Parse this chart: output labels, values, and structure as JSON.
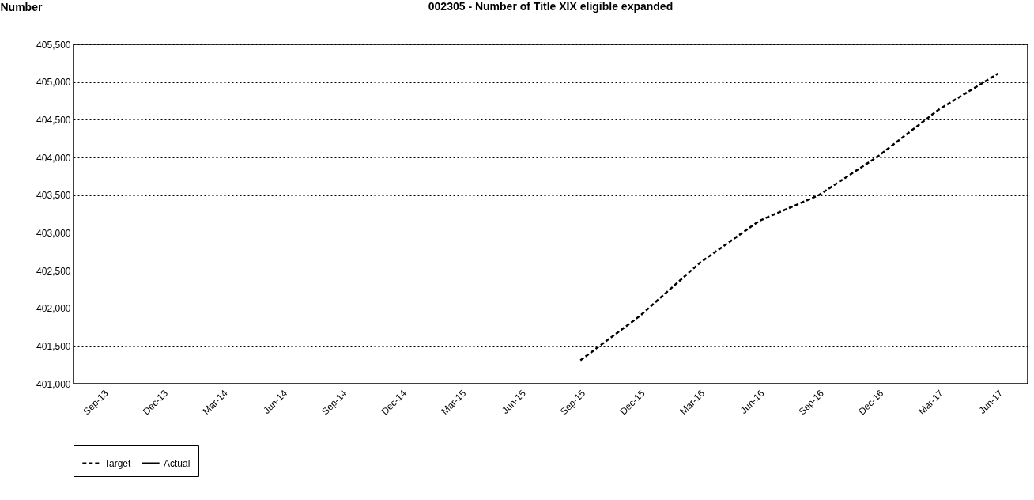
{
  "chart_data": {
    "type": "line",
    "title": "002305 - Number of Title XIX eligible expanded",
    "ylabel": "Number",
    "categories": [
      "Sep-13",
      "Dec-13",
      "Mar-14",
      "Jun-14",
      "Sep-14",
      "Dec-14",
      "Mar-15",
      "Jun-15",
      "Sep-15",
      "Dec-15",
      "Mar-16",
      "Jun-16",
      "Sep-16",
      "Dec-16",
      "Mar-17",
      "Jun-17"
    ],
    "series": [
      {
        "name": "Target",
        "color": "#000000",
        "line_style": "dashed",
        "values": [
          null,
          null,
          null,
          null,
          null,
          null,
          null,
          null,
          401310,
          401900,
          402600,
          403160,
          403500,
          404020,
          404630,
          405110
        ]
      },
      {
        "name": "Actual",
        "color": "#000000",
        "line_style": "solid",
        "values": [
          null,
          null,
          null,
          null,
          null,
          null,
          null,
          null,
          null,
          null,
          null,
          null,
          null,
          null,
          null,
          null
        ]
      }
    ],
    "ylim": [
      401000,
      405500
    ],
    "yticks": [
      {
        "value": 401000,
        "label": "401,000"
      },
      {
        "value": 401500,
        "label": "401,500"
      },
      {
        "value": 402000,
        "label": "402,000"
      },
      {
        "value": 402500,
        "label": "402,500"
      },
      {
        "value": 403000,
        "label": "403,000"
      },
      {
        "value": 403500,
        "label": "403,500"
      },
      {
        "value": 404000,
        "label": "404,000"
      },
      {
        "value": 404500,
        "label": "404,500"
      },
      {
        "value": 405000,
        "label": "405,000"
      },
      {
        "value": 405500,
        "label": "405,500"
      }
    ],
    "grid": "y",
    "legend": "bottom",
    "marker": "none"
  }
}
